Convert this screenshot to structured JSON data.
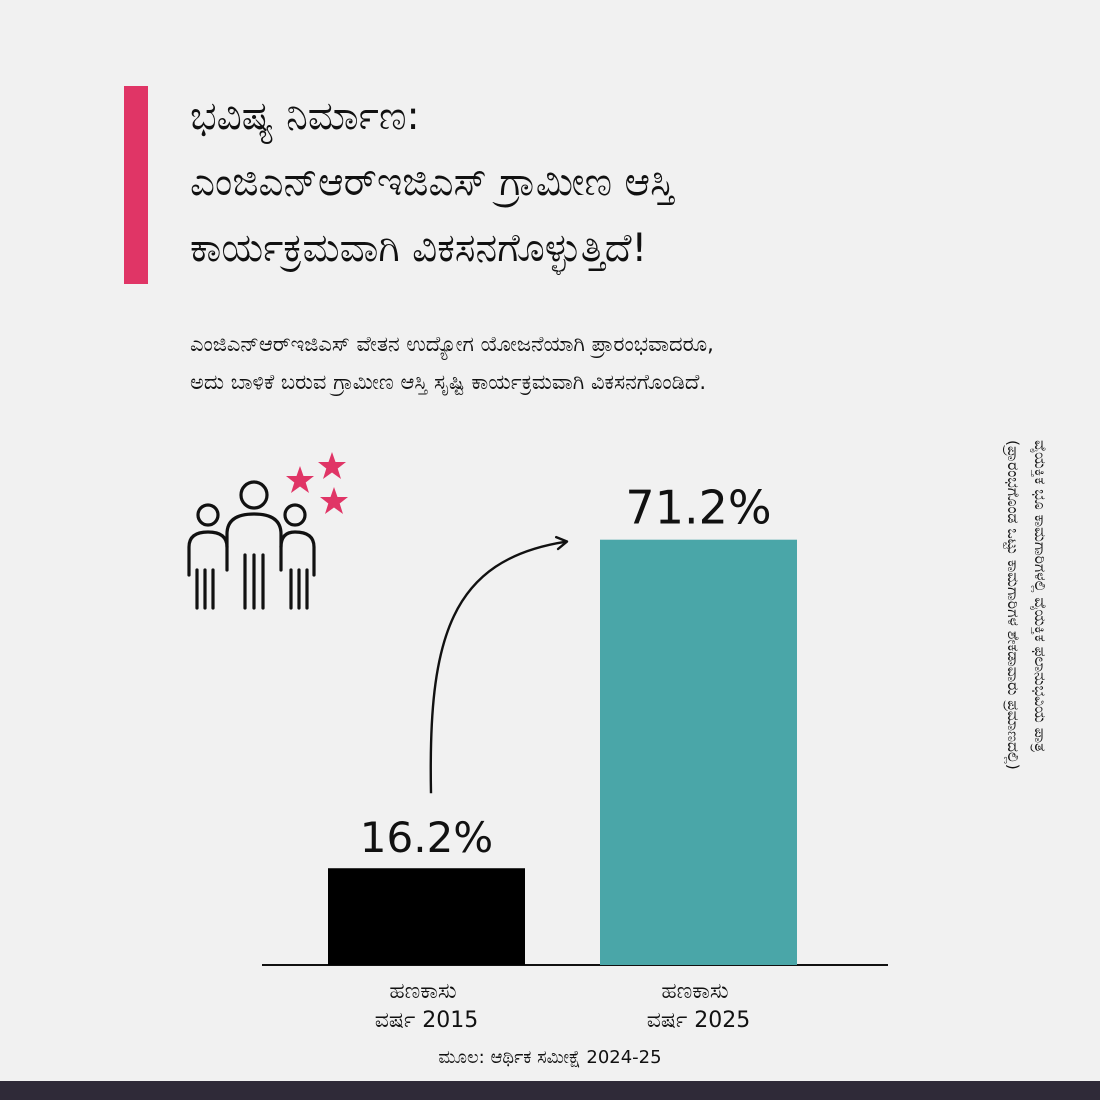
{
  "header": {
    "title_lines": [
      "ಭವಿಷ್ಯ ನಿರ್ಮಾಣ:",
      "ಎಂಜಿಎನ್‌ಆರ್‌ಇಜಿಎಸ್  ಗ್ರಾಮೀಣ ಆಸ್ತಿ",
      "ಕಾರ್ಯಕ್ರಮವಾಗಿ ವಿಕಸನಗೊಳ್ಳುತ್ತಿದೆ!"
    ],
    "subtitle_lines": [
      "ಎಂಜಿಎನ್‌ಆರ್‌ಇಜಿಎಸ್ ವೇತನ ಉದ್ಯೋಗ ಯೋಜನೆಯಾಗಿ ಪ್ರಾರಂಭವಾದರೂ,",
      "ಅದು ಬಾಳಿಕೆ ಬರುವ ಗ್ರಾಮೀಣ ಆಸ್ತಿ ಸೃಷ್ಟಿ ಕಾರ್ಯಕ್ರಮವಾಗಿ ವಿಕಸನಗೊಂಡಿದೆ."
    ]
  },
  "colors": {
    "accent": "#e03566",
    "bar_2015": "#000000",
    "bar_2025": "#4aa6a8",
    "footer": "#2f2a38"
  },
  "icons": [
    "people-group-icon",
    "star-icon"
  ],
  "side_note_lines": [
    "ವೈಯಕ್ತಿಕ ಭೂ ಕಾಮಗಾರಿಗಳಲ್ಲಿ ವೈಯಕ್ತಿಕ ಫಲಾನುಭವಿಯ ಪಾತ್ರ",
    "(ಪ್ರಾರಂಭಗೊಂಡ ಒಟ್ಟು ಕಾಮಗಾರಿಗಳ ಶೇಕಡಾವಾರು ಪ್ರಮಾಣದಲ್ಲಿ)"
  ],
  "source": "ಮೂಲ: ಆರ್ಥಿಕ ಸಮೀಕ್ಷೆ 2024-25",
  "chart_data": {
    "type": "bar",
    "categories": [
      [
        "ಹಣಕಾಸು",
        "ವರ್ಷ 2015"
      ],
      [
        "ಹಣಕಾಸು",
        "ವರ್ಷ 2025"
      ]
    ],
    "values": [
      16.2,
      71.2
    ],
    "value_labels": [
      "16.2%",
      "71.2%"
    ],
    "ylim": [
      0,
      75
    ],
    "grid": false,
    "annotation": "arrow-from-2015-to-2025"
  }
}
